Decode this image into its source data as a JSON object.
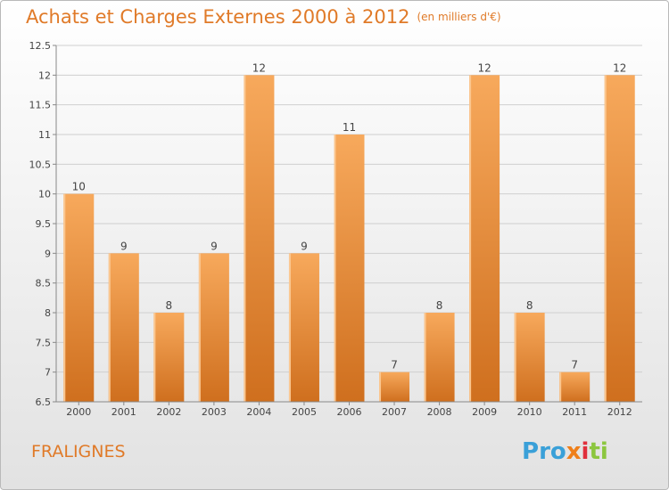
{
  "header": {
    "title": "Achats et Charges Externes 2000 à 2012",
    "unit": "(en milliers d'€)"
  },
  "footer": {
    "place": "FRALIGNES",
    "logo_text": "Proxiti"
  },
  "colors": {
    "title": "#e07a28",
    "bar_light": "#f5a75a",
    "bar_dark": "#d0701f",
    "grid": "#cfcfcf"
  },
  "chart_data": {
    "type": "bar",
    "title": "Achats et Charges Externes 2000 à 2012",
    "subtitle": "(en milliers d'€)",
    "categories": [
      "2000",
      "2001",
      "2002",
      "2003",
      "2004",
      "2005",
      "2006",
      "2007",
      "2008",
      "2009",
      "2010",
      "2011",
      "2012"
    ],
    "values": [
      10,
      9,
      8,
      9,
      12,
      9,
      11,
      7,
      8,
      12,
      8,
      7,
      12
    ],
    "ylim": [
      6.5,
      12.5
    ],
    "yticks": [
      6.5,
      7,
      7.5,
      8,
      8.5,
      9,
      9.5,
      10,
      10.5,
      11,
      11.5,
      12,
      12.5
    ],
    "grid": true,
    "xlabel": "",
    "ylabel": ""
  }
}
